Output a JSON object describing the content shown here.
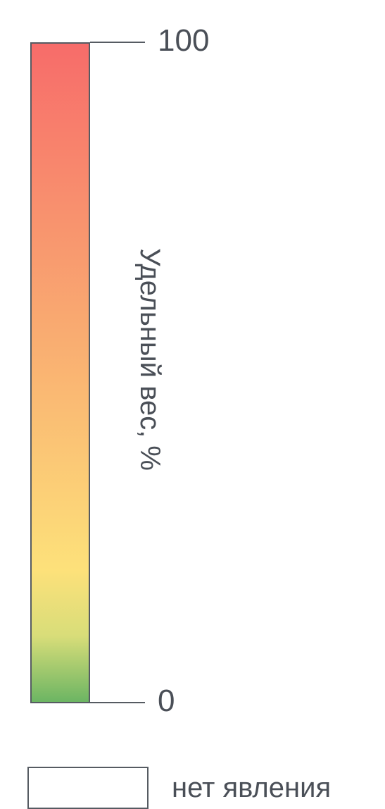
{
  "chart_data": {
    "type": "heatmap",
    "title": "",
    "colorbar": {
      "label": "Удельный вес, %",
      "min": 0,
      "max": 100,
      "tick_labels": [
        "100",
        "0"
      ],
      "colors": {
        "low": "#6cb563",
        "low_mid": "#d8dd79",
        "mid": "#fde17a",
        "high_mid": "#f9ad71",
        "high": "#f76c6a"
      }
    },
    "legend": {
      "no_data_label": "нет явления",
      "no_data_color": "#ffffff"
    }
  }
}
